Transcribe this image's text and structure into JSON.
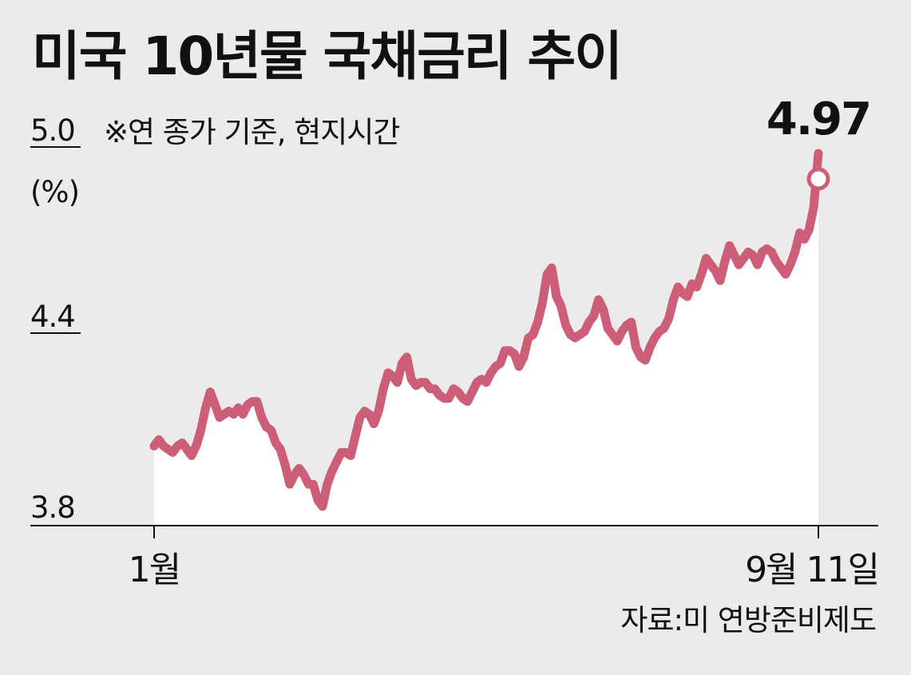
{
  "header": {
    "title": "미국 10년물 국채금리 추이",
    "note": "※연 종가 기준, 현지시간",
    "unit": "(%)"
  },
  "footer": {
    "source": "자료:미 연방준비제도"
  },
  "colors": {
    "line": "#cc5e78",
    "area": "#ffffff",
    "background": "#ebebeb"
  },
  "chart_data": {
    "type": "area",
    "title": "미국 10년물 국채금리 추이",
    "ylabel": "(%)",
    "ylim": [
      3.8,
      5.0
    ],
    "yticks": [
      "5.0",
      "4.4",
      "3.8"
    ],
    "xtick_labels": {
      "start": "1월",
      "end": "9월 11일"
    },
    "grid": false,
    "legend": "none",
    "series": [
      {
        "values": [
          4.05,
          4.07,
          4.05,
          4.04,
          4.03,
          4.05,
          4.06,
          4.04,
          4.02,
          4.05,
          4.1,
          4.17,
          4.22,
          4.18,
          4.14,
          4.15,
          4.16,
          4.15,
          4.17,
          4.15,
          4.18,
          4.19,
          4.19,
          4.14,
          4.11,
          4.1,
          4.06,
          4.04,
          3.99,
          3.93,
          3.96,
          3.98,
          3.96,
          3.93,
          3.93,
          3.88,
          3.86,
          3.93,
          3.97,
          4.0,
          4.03,
          4.03,
          4.02,
          4.08,
          4.14,
          4.16,
          4.15,
          4.12,
          4.16,
          4.23,
          4.28,
          4.27,
          4.25,
          4.31,
          4.33,
          4.26,
          4.24,
          4.25,
          4.25,
          4.23,
          4.23,
          4.21,
          4.2,
          4.2,
          4.23,
          4.22,
          4.2,
          4.19,
          4.22,
          4.25,
          4.26,
          4.25,
          4.28,
          4.3,
          4.31,
          4.35,
          4.35,
          4.34,
          4.3,
          4.33,
          4.39,
          4.4,
          4.44,
          4.5,
          4.59,
          4.61,
          4.52,
          4.49,
          4.43,
          4.4,
          4.39,
          4.4,
          4.41,
          4.44,
          4.46,
          4.51,
          4.48,
          4.42,
          4.4,
          4.38,
          4.41,
          4.43,
          4.44,
          4.36,
          4.33,
          4.32,
          4.36,
          4.39,
          4.41,
          4.42,
          4.45,
          4.51,
          4.55,
          4.53,
          4.52,
          4.56,
          4.55,
          4.59,
          4.64,
          4.62,
          4.6,
          4.57,
          4.63,
          4.68,
          4.65,
          4.62,
          4.64,
          4.66,
          4.65,
          4.62,
          4.66,
          4.67,
          4.66,
          4.63,
          4.61,
          4.59,
          4.62,
          4.66,
          4.72,
          4.7,
          4.73,
          4.8,
          4.97
        ]
      }
    ],
    "annotations": [
      {
        "label": "4.97",
        "value": 4.97,
        "position": "last-point"
      }
    ]
  }
}
